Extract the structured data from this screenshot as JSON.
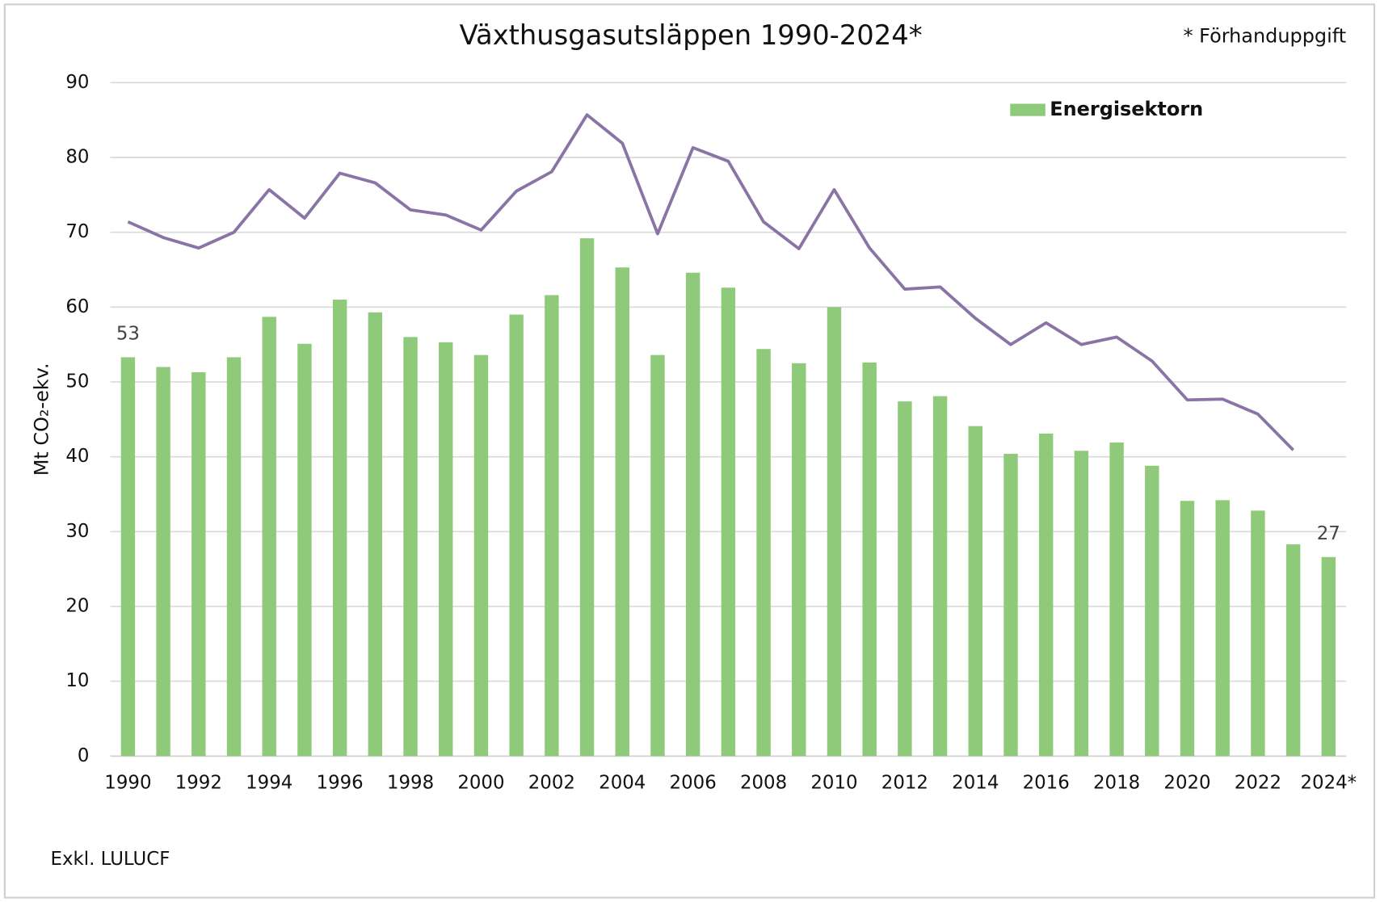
{
  "chart_data": {
    "type": "bar",
    "title": "Växthusgasutsläppen 1990-2024*",
    "note": "* Förhanduppgift",
    "ylabel": "Mt CO₂-ekv.",
    "footnote": "Exkl. LULUCF",
    "categories": [
      "1990",
      null,
      "1992",
      null,
      "1994",
      null,
      "1996",
      null,
      "1998",
      null,
      "2000",
      null,
      "2002",
      null,
      "2004",
      null,
      "2006",
      null,
      "2008",
      null,
      "2010",
      null,
      "2012",
      null,
      "2014",
      null,
      "2016",
      null,
      "2018",
      null,
      "2020",
      null,
      "2022",
      null,
      "2024*"
    ],
    "series": [
      {
        "name": "Energisektorn",
        "type": "bar",
        "color": "#8fca7a",
        "values": [
          53.3,
          52.0,
          51.3,
          53.3,
          58.7,
          55.1,
          61.0,
          59.3,
          56.0,
          55.3,
          53.6,
          59.0,
          61.6,
          69.2,
          65.3,
          53.6,
          64.6,
          62.6,
          54.4,
          52.5,
          60.0,
          52.6,
          47.4,
          48.1,
          44.1,
          40.4,
          43.1,
          40.8,
          41.9,
          38.8,
          34.1,
          34.2,
          32.8,
          28.3,
          26.6
        ],
        "value_labels": [
          "53",
          null,
          null,
          null,
          null,
          null,
          null,
          null,
          null,
          null,
          null,
          null,
          null,
          null,
          null,
          null,
          null,
          null,
          null,
          null,
          null,
          null,
          null,
          null,
          null,
          null,
          null,
          null,
          null,
          null,
          null,
          null,
          null,
          null,
          "27"
        ]
      },
      {
        "type": "line",
        "color": "#8a74a6",
        "values": [
          71.4,
          69.3,
          67.9,
          70.0,
          75.7,
          71.9,
          77.9,
          76.6,
          73.0,
          72.3,
          70.3,
          75.5,
          78.1,
          85.7,
          81.9,
          69.8,
          81.3,
          79.5,
          71.4,
          67.8,
          75.7,
          67.9,
          62.4,
          62.7,
          58.5,
          55.0,
          57.9,
          55.0,
          56.0,
          52.8,
          47.6,
          47.7,
          45.7,
          40.9,
          null
        ]
      }
    ],
    "ylim": [
      0,
      90
    ],
    "yticks": [
      0,
      10,
      20,
      30,
      40,
      50,
      60,
      70,
      80,
      90
    ],
    "grid": true,
    "legend": "top-right"
  }
}
